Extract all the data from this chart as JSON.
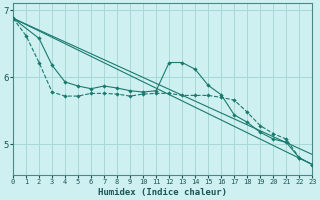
{
  "xlabel": "Humidex (Indice chaleur)",
  "background_color": "#cff0f0",
  "grid_color": "#a8d8d8",
  "line_color": "#1a7a6e",
  "x_ticks": [
    0,
    1,
    2,
    3,
    4,
    5,
    6,
    7,
    8,
    9,
    10,
    11,
    12,
    13,
    14,
    15,
    16,
    17,
    18,
    19,
    20,
    21,
    22,
    23
  ],
  "ylim": [
    4.55,
    7.1
  ],
  "xlim": [
    0,
    23
  ],
  "yticks": [
    5,
    6,
    7
  ],
  "series1_x": [
    0,
    1,
    2,
    3,
    4,
    5,
    6,
    7,
    8,
    9,
    10,
    11,
    12,
    13,
    14,
    15,
    16,
    17,
    18,
    19,
    20,
    21,
    22,
    23
  ],
  "series1_y": [
    6.88,
    6.62,
    6.22,
    5.78,
    5.72,
    5.72,
    5.76,
    5.76,
    5.75,
    5.72,
    5.75,
    5.76,
    5.76,
    5.73,
    5.73,
    5.73,
    5.7,
    5.66,
    5.48,
    5.28,
    5.16,
    5.08,
    4.8,
    4.7
  ],
  "series2_x": [
    0,
    2,
    3,
    4,
    5,
    6,
    7,
    8,
    9,
    10,
    11,
    12,
    13,
    14,
    15,
    16,
    17,
    18,
    19,
    20,
    21,
    22,
    23
  ],
  "series2_y": [
    6.88,
    6.58,
    6.18,
    5.93,
    5.87,
    5.83,
    5.87,
    5.84,
    5.8,
    5.78,
    5.8,
    6.22,
    6.22,
    6.12,
    5.88,
    5.74,
    5.44,
    5.33,
    5.18,
    5.08,
    5.03,
    4.8,
    4.7
  ],
  "line1_x": [
    0,
    23
  ],
  "line1_y": [
    6.88,
    4.7
  ],
  "line2_x": [
    0,
    23
  ],
  "line2_y": [
    6.88,
    4.85
  ]
}
